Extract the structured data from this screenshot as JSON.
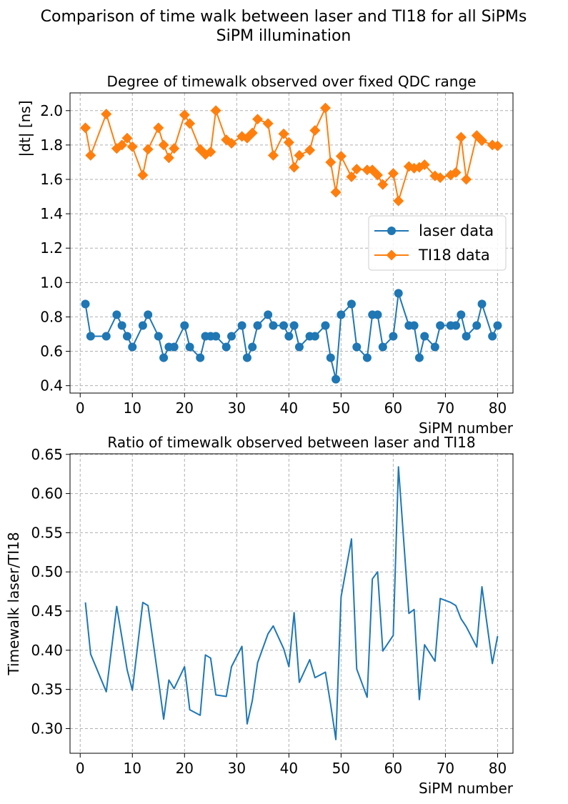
{
  "figure": {
    "title_line1": "Comparison of time walk between laser and TI18 for all SiPMs",
    "title_line2": "SiPM illumination"
  },
  "colors": {
    "laser": "#1f77b4",
    "ti18": "#ff7f0e",
    "grid": "#b0b0b0"
  },
  "chart_data": [
    {
      "type": "line",
      "title": "Degree of timewalk observed over fixed QDC range",
      "xlabel": "SiPM number",
      "ylabel": "|dt| [ns]",
      "xlim": [
        -1.95,
        82.95
      ],
      "ylim": [
        0.357,
        2.103
      ],
      "xticks": [
        0,
        10,
        20,
        30,
        40,
        50,
        60,
        70,
        80
      ],
      "yticks": [
        0.4,
        0.6,
        0.8,
        1.0,
        1.2,
        1.4,
        1.6,
        1.8,
        2.0
      ],
      "ytick_labels": [
        "0.4",
        "0.6",
        "0.8",
        "1.0",
        "1.2",
        "1.4",
        "1.6",
        "1.8",
        "2.0"
      ],
      "grid": true,
      "legend": "center-right",
      "x": [
        1,
        2,
        5,
        7,
        8,
        9,
        10,
        12,
        13,
        15,
        16,
        17,
        18,
        20,
        21,
        23,
        24,
        25,
        26,
        28,
        29,
        31,
        32,
        33,
        34,
        36,
        37,
        39,
        40,
        41,
        42,
        44,
        45,
        47,
        48,
        49,
        50,
        52,
        53,
        55,
        56,
        57,
        58,
        60,
        61,
        63,
        64,
        65,
        66,
        68,
        69,
        71,
        72,
        73,
        74,
        76,
        77,
        79,
        80
      ],
      "series": [
        {
          "name": "laser data",
          "marker": "circle",
          "values": [
            0.875,
            0.6875,
            0.6875,
            0.8125,
            0.75,
            0.6875,
            0.625,
            0.75,
            0.8125,
            0.6875,
            0.5625,
            0.625,
            0.625,
            0.75,
            0.625,
            0.5625,
            0.6875,
            0.6875,
            0.6875,
            0.625,
            0.6875,
            0.75,
            0.5625,
            0.625,
            0.75,
            0.8125,
            0.75,
            0.75,
            0.6875,
            0.75,
            0.625,
            0.6875,
            0.6875,
            0.75,
            0.5625,
            0.4375,
            0.8125,
            0.875,
            0.625,
            0.5625,
            0.8125,
            0.8125,
            0.625,
            0.6875,
            0.9375,
            0.75,
            0.75,
            0.5625,
            0.6875,
            0.625,
            0.75,
            0.75,
            0.75,
            0.8125,
            0.6875,
            0.75,
            0.875,
            0.6875,
            0.75
          ]
        },
        {
          "name": "TI18 data",
          "marker": "diamond",
          "values": [
            1.9,
            1.74,
            1.98,
            1.78,
            1.8,
            1.84,
            1.79,
            1.625,
            1.775,
            1.9,
            1.8,
            1.725,
            1.78,
            1.975,
            1.925,
            1.775,
            1.745,
            1.76,
            2.0,
            1.83,
            1.81,
            1.85,
            1.84,
            1.87,
            1.95,
            1.925,
            1.74,
            1.865,
            1.815,
            1.67,
            1.74,
            1.77,
            1.885,
            2.015,
            1.7,
            1.525,
            1.735,
            1.615,
            1.66,
            1.655,
            1.655,
            1.625,
            1.57,
            1.635,
            1.475,
            1.675,
            1.665,
            1.67,
            1.685,
            1.62,
            1.61,
            1.625,
            1.64,
            1.845,
            1.6,
            1.855,
            1.825,
            1.8,
            1.795
          ]
        }
      ]
    },
    {
      "type": "line",
      "title": "Ratio of timewalk observed between laser and TI18",
      "xlabel": "SiPM number",
      "ylabel": "Timewalk laser/TI18",
      "xlim": [
        -1.95,
        82.95
      ],
      "ylim": [
        0.2685,
        0.6507
      ],
      "xticks": [
        0,
        10,
        20,
        30,
        40,
        50,
        60,
        70,
        80
      ],
      "yticks": [
        0.3,
        0.35,
        0.4,
        0.45,
        0.5,
        0.55,
        0.6,
        0.65
      ],
      "ytick_labels": [
        "0.30",
        "0.35",
        "0.40",
        "0.45",
        "0.50",
        "0.55",
        "0.60",
        "0.65"
      ],
      "grid": true,
      "x": [
        1,
        2,
        5,
        7,
        8,
        9,
        10,
        12,
        13,
        15,
        16,
        17,
        18,
        20,
        21,
        23,
        24,
        25,
        26,
        28,
        29,
        31,
        32,
        33,
        34,
        36,
        37,
        39,
        40,
        41,
        42,
        44,
        45,
        47,
        48,
        49,
        50,
        52,
        53,
        55,
        56,
        57,
        58,
        60,
        61,
        63,
        64,
        65,
        66,
        68,
        69,
        71,
        72,
        73,
        74,
        76,
        77,
        79,
        80
      ],
      "series": [
        {
          "marker": "none",
          "values": [
            0.461,
            0.395,
            0.347,
            0.456,
            0.416,
            0.375,
            0.349,
            0.461,
            0.457,
            0.362,
            0.312,
            0.362,
            0.351,
            0.379,
            0.324,
            0.317,
            0.394,
            0.39,
            0.343,
            0.341,
            0.379,
            0.405,
            0.306,
            0.336,
            0.384,
            0.421,
            0.431,
            0.402,
            0.379,
            0.448,
            0.359,
            0.388,
            0.365,
            0.372,
            0.331,
            0.286,
            0.468,
            0.542,
            0.376,
            0.34,
            0.491,
            0.5,
            0.399,
            0.419,
            0.634,
            0.447,
            0.452,
            0.337,
            0.407,
            0.386,
            0.466,
            0.461,
            0.457,
            0.44,
            0.43,
            0.404,
            0.481,
            0.383,
            0.418
          ]
        }
      ]
    }
  ]
}
